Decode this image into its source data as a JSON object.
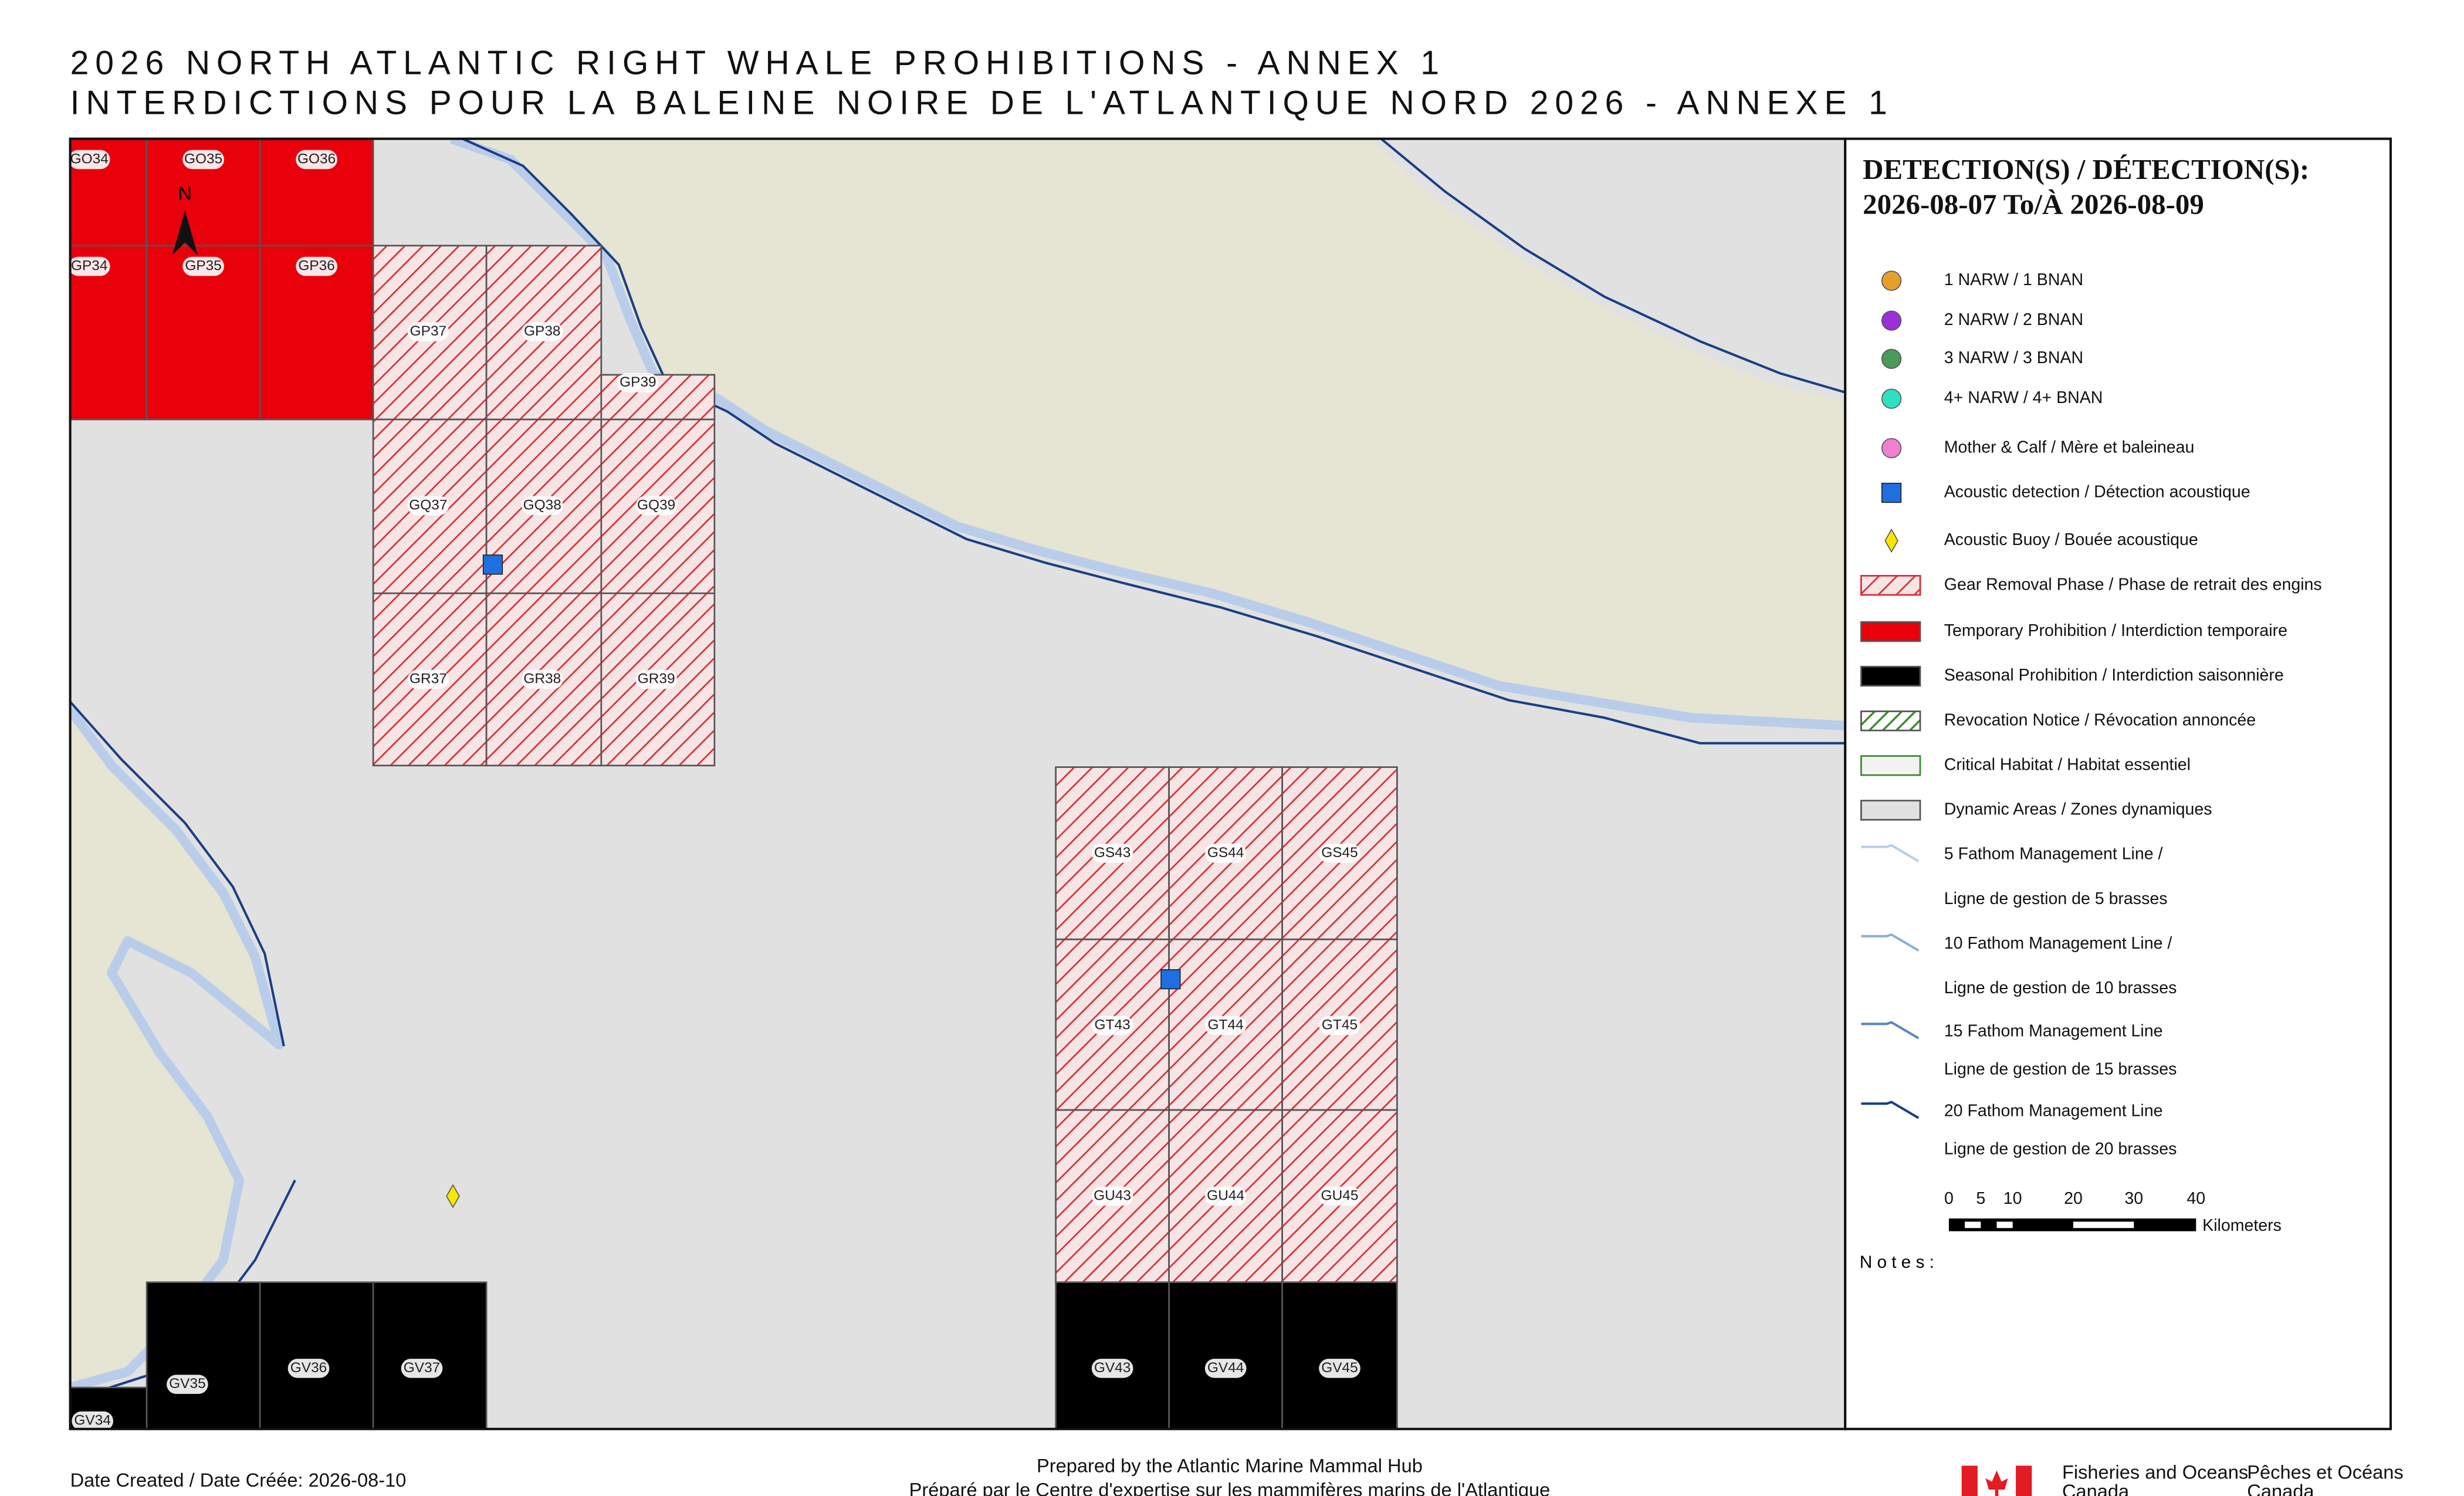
{
  "header": {
    "title_en": "2026 NORTH ATLANTIC RIGHT WHALE PROHIBITIONS - ANNEX 1",
    "title_fr": "INTERDICTIONS POUR LA BALEINE NOIRE DE L'ATLANTIQUE NORD 2026 - ANNEXE 1"
  },
  "map": {
    "north": "N",
    "cells": [
      "GO34",
      "GO35",
      "GO36",
      "GP34",
      "GP35",
      "GP36",
      "GP37",
      "GP38",
      "GP39",
      "GQ37",
      "GQ38",
      "GQ39",
      "GR37",
      "GR38",
      "GR39",
      "GS43",
      "GS44",
      "GS45",
      "GT43",
      "GT44",
      "GT45",
      "GU43",
      "GU44",
      "GU45",
      "GV43",
      "GV44",
      "GV45",
      "GV34",
      "GV35",
      "GV36",
      "GV37"
    ]
  },
  "legend": {
    "title": [
      "DETECTION(S) / DÉTECTION(S):",
      "2026-08-07 To/À 2026-08-09"
    ],
    "items": [
      "1 NARW / 1 BNAN",
      "2 NARW / 2 BNAN",
      "3 NARW / 3 BNAN",
      "4+ NARW / 4+ BNAN",
      "Mother & Calf / Mère et baleineau",
      "Acoustic detection / Détection acoustique",
      "Acoustic Buoy / Bouée acoustique",
      "Gear Removal Phase / Phase de retrait des engins",
      "Temporary Prohibition / Interdiction temporaire",
      "Seasonal Prohibition / Interdiction saisonnière",
      "Revocation Notice / Révocation annoncée",
      "Critical Habitat / Habitat essentiel",
      "Dynamic Areas / Zones dynamiques",
      "5 Fathom Management Line /",
      "Ligne de gestion de 5 brasses",
      "10 Fathom Management Line /",
      "Ligne de gestion de 10 brasses",
      "15 Fathom Management Line",
      "Ligne de gestion de 15 brasses",
      "20 Fathom Management Line",
      "Ligne de gestion de 20 brasses"
    ],
    "scale": {
      "labels": [
        "0",
        "5",
        "10",
        "20",
        "30",
        "40"
      ],
      "unit": "Kilometers"
    },
    "notes": "Notes:"
  },
  "footer": {
    "date": "Date Created / Date Créée: 2026-08-10",
    "prepared_en": "Prepared by the Atlantic Marine Mammal Hub",
    "prepared_fr": "Préparé par le Centre d'expertise sur les mammifères marins de l'Atlantique",
    "dfo_en": [
      "Fisheries and Oceans",
      "Canada"
    ],
    "dfo_fr": [
      "Pêches et Océans",
      "Canada"
    ]
  }
}
